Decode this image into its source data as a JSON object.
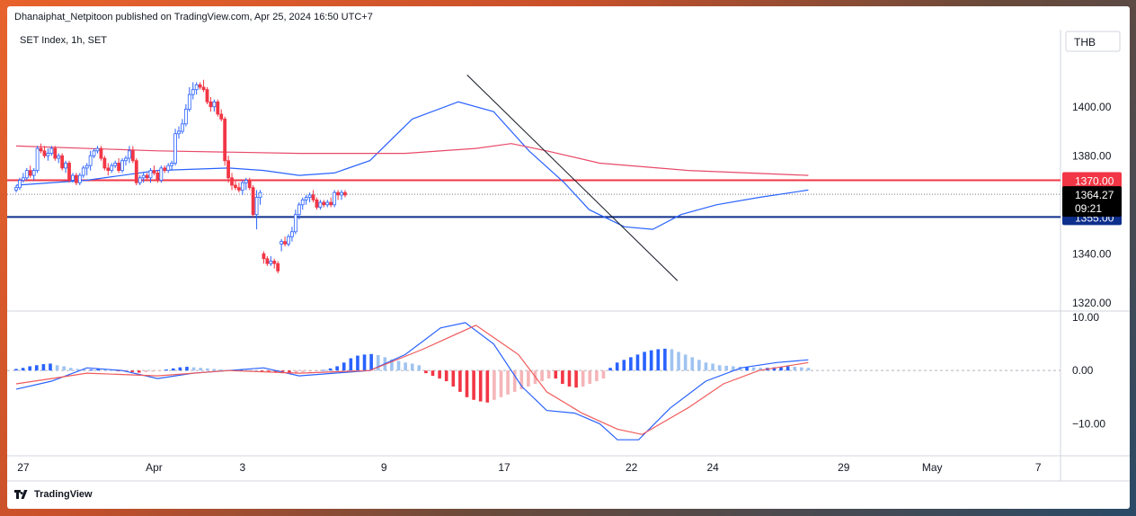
{
  "header": {
    "published": "Dhanaiphat_Netpitoon published on TradingView.com, Apr 25, 2024 16:50 UTC+7"
  },
  "footer": {
    "brand": "TradingView",
    "logo_icon": "tradingview-logo-icon"
  },
  "colors": {
    "up": "#ffffff",
    "up_border": "#2962ff",
    "down": "#f23645",
    "ema_fast": "#2962ff",
    "ema_slow": "#e84a6a",
    "resistance": "#f23645",
    "support": "#0d2f8c",
    "trend": "#131722",
    "macd": "#2962ff",
    "signal": "#f05a5a",
    "hist_up_strong": "#2962ff",
    "hist_up_weak": "#9fc3f0",
    "hist_down_strong": "#f23645",
    "hist_down_weak": "#f5b5b8"
  },
  "chart_data": [
    {
      "type": "candlestick",
      "title": "SET Index, 1h, SET",
      "currency": "THB",
      "ylim": [
        1317,
        1430
      ],
      "y_ticks": [
        "1400.00",
        "1380.00",
        "1340.00",
        "1320.00"
      ],
      "x_tick_labels": [
        "27",
        "Apr",
        "3",
        "9",
        "17",
        "22",
        "24",
        "29",
        "May",
        "7"
      ],
      "x_tick_positions": [
        2,
        39,
        64,
        104,
        138,
        174,
        197,
        234,
        259,
        289
      ],
      "horizontal_lines": [
        {
          "name": "resistance",
          "value": 1370.0,
          "label": "1370.00"
        },
        {
          "name": "support",
          "value": 1355.0,
          "label": "1355.00"
        }
      ],
      "last_price": {
        "value": 1364.27,
        "label": "1364.27",
        "countdown": "09:21"
      },
      "trendline": {
        "from": [
          127.5,
          1413
        ],
        "to": [
          187,
          1329
        ]
      },
      "candles": [
        [
          1366,
          1368,
          1365,
          1367
        ],
        [
          1367,
          1371,
          1366,
          1370
        ],
        [
          1370,
          1373,
          1369,
          1371
        ],
        [
          1371,
          1375,
          1370,
          1374
        ],
        [
          1374,
          1376,
          1371,
          1372
        ],
        [
          1372,
          1375,
          1370,
          1374
        ],
        [
          1374,
          1384,
          1373,
          1383
        ],
        [
          1383,
          1385,
          1381,
          1382
        ],
        [
          1382,
          1384,
          1379,
          1380
        ],
        [
          1380,
          1383,
          1378,
          1381
        ],
        [
          1381,
          1384,
          1380,
          1383
        ],
        [
          1383,
          1384,
          1378,
          1379
        ],
        [
          1379,
          1381,
          1377,
          1380
        ],
        [
          1380,
          1381,
          1374,
          1375
        ],
        [
          1375,
          1378,
          1373,
          1377
        ],
        [
          1377,
          1378,
          1369,
          1370
        ],
        [
          1370,
          1373,
          1369,
          1372
        ],
        [
          1372,
          1373,
          1368,
          1369
        ],
        [
          1369,
          1373,
          1368,
          1372
        ],
        [
          1372,
          1376,
          1371,
          1375
        ],
        [
          1375,
          1377,
          1372,
          1376
        ],
        [
          1376,
          1382,
          1374,
          1380
        ],
        [
          1380,
          1383,
          1379,
          1382
        ],
        [
          1382,
          1384,
          1381,
          1383
        ],
        [
          1383,
          1384,
          1378,
          1379
        ],
        [
          1379,
          1380,
          1374,
          1375
        ],
        [
          1375,
          1377,
          1372,
          1374
        ],
        [
          1374,
          1377,
          1373,
          1376
        ],
        [
          1376,
          1378,
          1375,
          1377
        ],
        [
          1377,
          1379,
          1373,
          1374
        ],
        [
          1374,
          1379,
          1373,
          1378
        ],
        [
          1378,
          1380,
          1376,
          1379
        ],
        [
          1379,
          1384,
          1377,
          1382
        ],
        [
          1382,
          1384,
          1377,
          1378
        ],
        [
          1378,
          1379,
          1368,
          1369
        ],
        [
          1369,
          1372,
          1368,
          1371
        ],
        [
          1371,
          1373,
          1369,
          1372
        ],
        [
          1372,
          1373,
          1370,
          1371
        ],
        [
          1371,
          1375,
          1369,
          1374
        ],
        [
          1374,
          1376,
          1372,
          1373
        ],
        [
          1373,
          1374,
          1369,
          1370
        ],
        [
          1370,
          1376,
          1369,
          1375
        ],
        [
          1375,
          1376,
          1373,
          1374
        ],
        [
          1374,
          1377,
          1373,
          1376
        ],
        [
          1376,
          1378,
          1374,
          1377
        ],
        [
          1377,
          1391,
          1376,
          1389
        ],
        [
          1389,
          1392,
          1387,
          1390
        ],
        [
          1390,
          1395,
          1389,
          1393
        ],
        [
          1393,
          1401,
          1392,
          1399
        ],
        [
          1399,
          1408,
          1398,
          1405
        ],
        [
          1405,
          1410,
          1403,
          1407
        ],
        [
          1407,
          1410,
          1405,
          1409
        ],
        [
          1409,
          1410,
          1407,
          1408
        ],
        [
          1408,
          1411,
          1406,
          1407
        ],
        [
          1407,
          1408,
          1401,
          1402
        ],
        [
          1402,
          1404,
          1398,
          1400
        ],
        [
          1400,
          1403,
          1398,
          1402
        ],
        [
          1402,
          1403,
          1396,
          1397
        ],
        [
          1397,
          1399,
          1394,
          1395
        ],
        [
          1395,
          1396,
          1376,
          1378
        ],
        [
          1378,
          1380,
          1369,
          1371
        ],
        [
          1371,
          1373,
          1366,
          1368
        ],
        [
          1368,
          1370,
          1366,
          1367
        ],
        [
          1367,
          1369,
          1365,
          1366
        ],
        [
          1366,
          1370,
          1364,
          1369
        ],
        [
          1369,
          1371,
          1366,
          1370
        ],
        [
          1370,
          1371,
          1366,
          1367
        ],
        [
          1367,
          1368,
          1355,
          1356
        ],
        [
          1356,
          1366,
          1350,
          1363
        ],
        [
          1363,
          1366,
          1360,
          1365
        ],
        [
          1340,
          1341,
          1336,
          1338
        ],
        [
          1338,
          1339,
          1335,
          1336
        ],
        [
          1336,
          1339,
          1335,
          1337
        ],
        [
          1337,
          1338,
          1334,
          1336
        ],
        [
          1336,
          1337,
          1332,
          1333
        ],
        [
          1344,
          1346,
          1341,
          1345
        ],
        [
          1345,
          1347,
          1343,
          1344
        ],
        [
          1344,
          1348,
          1343,
          1347
        ],
        [
          1347,
          1351,
          1345,
          1349
        ],
        [
          1349,
          1358,
          1348,
          1356
        ],
        [
          1356,
          1361,
          1354,
          1360
        ],
        [
          1360,
          1363,
          1358,
          1362
        ],
        [
          1362,
          1364,
          1360,
          1363
        ],
        [
          1363,
          1365,
          1361,
          1364
        ],
        [
          1364,
          1366,
          1361,
          1362
        ],
        [
          1362,
          1363,
          1358,
          1359
        ],
        [
          1359,
          1362,
          1358,
          1361
        ],
        [
          1361,
          1362,
          1359,
          1360
        ],
        [
          1360,
          1362,
          1359,
          1361
        ],
        [
          1361,
          1363,
          1359,
          1360
        ],
        [
          1360,
          1366,
          1359,
          1365
        ],
        [
          1365,
          1366,
          1362,
          1364
        ],
        [
          1364,
          1366,
          1362,
          1365
        ],
        [
          1365,
          1366,
          1363,
          1364
        ]
      ],
      "series": [
        {
          "name": "EMA fast",
          "points": [
            [
              0,
              1368
            ],
            [
              20,
              1370
            ],
            [
              40,
              1374
            ],
            [
              60,
              1375
            ],
            [
              70,
              1374
            ],
            [
              80,
              1372
            ],
            [
              90,
              1373
            ],
            [
              100,
              1378
            ],
            [
              112,
              1395
            ],
            [
              125,
              1402
            ],
            [
              135,
              1398
            ],
            [
              145,
              1382
            ],
            [
              155,
              1369
            ],
            [
              162,
              1358
            ],
            [
              172,
              1351
            ],
            [
              180,
              1350
            ],
            [
              188,
              1356
            ],
            [
              198,
              1360
            ],
            [
              210,
              1363
            ],
            [
              224,
              1366
            ]
          ]
        },
        {
          "name": "EMA slow",
          "points": [
            [
              0,
              1384
            ],
            [
              40,
              1382
            ],
            [
              80,
              1381
            ],
            [
              110,
              1381
            ],
            [
              130,
              1383
            ],
            [
              140,
              1385
            ],
            [
              150,
              1382
            ],
            [
              165,
              1377
            ],
            [
              190,
              1374
            ],
            [
              224,
              1372
            ]
          ]
        }
      ]
    },
    {
      "type": "macd",
      "ylim": [
        -16,
        11
      ],
      "y_ticks": [
        "10.00",
        "0.00",
        "−10.00"
      ],
      "series": [
        {
          "name": "MACD",
          "points": [
            [
              0,
              -3.5
            ],
            [
              10,
              -2
            ],
            [
              20,
              0.5
            ],
            [
              30,
              0
            ],
            [
              40,
              -1.5
            ],
            [
              50,
              -0.5
            ],
            [
              60,
              0
            ],
            [
              70,
              0.5
            ],
            [
              80,
              -1
            ],
            [
              100,
              0
            ],
            [
              110,
              3
            ],
            [
              120,
              8
            ],
            [
              127,
              9
            ],
            [
              135,
              5
            ],
            [
              143,
              -3
            ],
            [
              150,
              -7.5
            ],
            [
              158,
              -8
            ],
            [
              165,
              -10
            ],
            [
              170,
              -13
            ],
            [
              176,
              -13
            ],
            [
              185,
              -7
            ],
            [
              195,
              -2
            ],
            [
              205,
              0.5
            ],
            [
              215,
              1.5
            ],
            [
              224,
              2
            ]
          ]
        },
        {
          "name": "Signal",
          "points": [
            [
              0,
              -2.5
            ],
            [
              10,
              -1.5
            ],
            [
              20,
              -0.5
            ],
            [
              40,
              -1
            ],
            [
              60,
              0
            ],
            [
              80,
              -0.5
            ],
            [
              100,
              0
            ],
            [
              115,
              4
            ],
            [
              130,
              8.5
            ],
            [
              142,
              3
            ],
            [
              150,
              -4
            ],
            [
              160,
              -8
            ],
            [
              170,
              -11
            ],
            [
              177,
              -12
            ],
            [
              190,
              -7
            ],
            [
              200,
              -2.5
            ],
            [
              210,
              0
            ],
            [
              224,
              1.5
            ]
          ]
        }
      ],
      "histogram": [
        0.3,
        0.5,
        0.8,
        1.0,
        1.2,
        1.3,
        1.0,
        0.8,
        0.5,
        0.3,
        0.2,
        0.2,
        0.3,
        0.2,
        0.1,
        -0.1,
        -0.2,
        -0.3,
        -0.4,
        -0.3,
        -0.2,
        -0.1,
        0.2,
        0.4,
        0.6,
        0.7,
        0.6,
        0.5,
        0.4,
        0.3,
        0.2,
        0.1,
        0.1,
        0.2,
        0.1,
        0,
        -0.1,
        -0.2,
        -0.4,
        -0.5,
        -0.5,
        -0.4,
        -0.3,
        -0.2,
        -0.1,
        0.1,
        0.4,
        0.8,
        1.5,
        2.3,
        2.8,
        3.0,
        3.1,
        2.9,
        2.5,
        2.1,
        1.8,
        1.5,
        1.3,
        1.0,
        -0.5,
        -1.0,
        -1.5,
        -2.0,
        -3.0,
        -4.0,
        -5.0,
        -5.5,
        -5.8,
        -6.0,
        -5.5,
        -5.0,
        -4.5,
        -4.0,
        -3.5,
        -3.0,
        -2.5,
        -2.0,
        -1.5,
        -1.5,
        -2.5,
        -3.0,
        -3.2,
        -3.0,
        -2.5,
        -2.0,
        -1.5,
        0.5,
        1.5,
        2.0,
        2.5,
        3.0,
        3.5,
        3.8,
        4.0,
        4.1,
        4.0,
        3.5,
        3.0,
        2.5,
        2.0,
        1.5,
        1.3,
        1.0,
        0.9,
        0.8,
        0.7,
        0.7,
        0.6,
        0.5,
        0.5,
        0.6,
        0.7,
        0.8,
        0.7,
        0.6,
        0.5
      ]
    }
  ]
}
